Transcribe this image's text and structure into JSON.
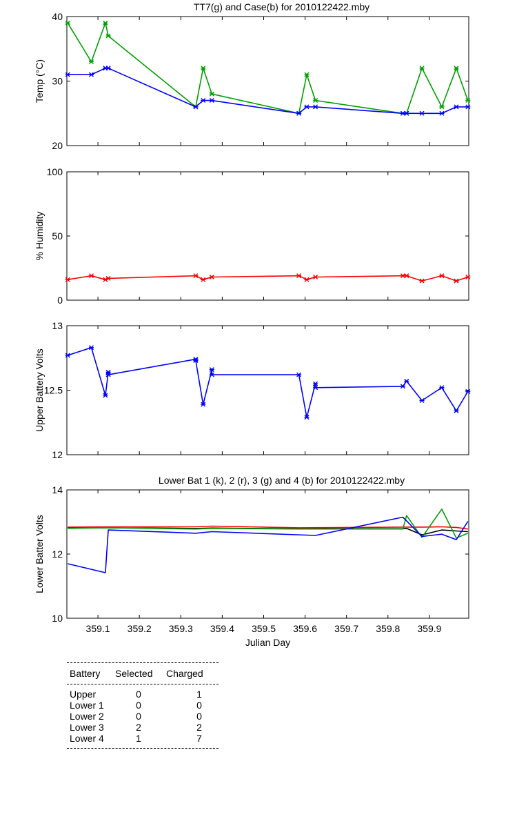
{
  "chart_data": [
    {
      "type": "line",
      "title": "TT7(g) and Case(b) for 2010122422.mby",
      "xlabel": "",
      "ylabel": "Temp  (°C)",
      "xlim": [
        359.025,
        359.995
      ],
      "ylim": [
        20,
        40
      ],
      "yticks": [
        20,
        30,
        40
      ],
      "series": [
        {
          "name": "TT7",
          "color": "#00a000",
          "x": [
            359.027,
            359.084,
            359.118,
            359.125,
            359.336,
            359.354,
            359.375,
            359.585,
            359.604,
            359.625,
            359.836,
            359.845,
            359.882,
            359.93,
            359.965,
            359.993
          ],
          "y": [
            39,
            33,
            39,
            37,
            26,
            32,
            28,
            25,
            31,
            27,
            25,
            25,
            32,
            26,
            32,
            27
          ]
        },
        {
          "name": "Case",
          "color": "#0000ff",
          "x": [
            359.027,
            359.084,
            359.118,
            359.125,
            359.336,
            359.354,
            359.375,
            359.585,
            359.604,
            359.625,
            359.836,
            359.845,
            359.882,
            359.93,
            359.965,
            359.993
          ],
          "y": [
            31,
            31,
            32,
            32,
            26,
            27,
            27,
            25,
            26,
            26,
            25,
            25,
            25,
            25,
            26,
            26
          ]
        }
      ]
    },
    {
      "type": "line",
      "title": "",
      "xlabel": "",
      "ylabel": "% Humidity",
      "xlim": [
        359.025,
        359.995
      ],
      "ylim": [
        0,
        100
      ],
      "yticks": [
        0,
        50,
        100
      ],
      "series": [
        {
          "name": "Humidity",
          "color": "#ff0000",
          "x": [
            359.027,
            359.084,
            359.118,
            359.125,
            359.336,
            359.354,
            359.375,
            359.585,
            359.604,
            359.625,
            359.836,
            359.845,
            359.882,
            359.93,
            359.965,
            359.993
          ],
          "y": [
            16,
            19,
            16,
            17,
            19,
            16,
            18,
            19,
            16,
            18,
            19,
            19,
            15,
            19,
            15,
            18
          ]
        }
      ]
    },
    {
      "type": "line",
      "title": "",
      "xlabel": "",
      "ylabel": "Upper Battery Volts",
      "xlim": [
        359.025,
        359.995
      ],
      "ylim": [
        12,
        13
      ],
      "yticks": [
        12,
        12.5,
        13
      ],
      "ytick_labels": [
        "12",
        "12.5",
        "13"
      ],
      "series": [
        {
          "name": "Upper",
          "color": "#0000ff",
          "x": [
            359.027,
            359.084,
            359.118,
            359.125,
            359.125,
            359.336,
            359.336,
            359.354,
            359.375,
            359.375,
            359.585,
            359.604,
            359.625,
            359.625,
            359.836,
            359.845,
            359.882,
            359.93,
            359.965,
            359.993
          ],
          "y": [
            12.77,
            12.83,
            12.46,
            12.64,
            12.62,
            12.74,
            12.73,
            12.39,
            12.66,
            12.62,
            12.62,
            12.29,
            12.55,
            12.52,
            12.53,
            12.57,
            12.42,
            12.52,
            12.34,
            12.49
          ]
        }
      ]
    },
    {
      "type": "line",
      "title": "Lower Bat 1 (k), 2 (r), 3 (g) and 4 (b) for 2010122422.mby",
      "xlabel": "Julian Day",
      "ylabel": "Lower Batter Volts",
      "xlim": [
        359.025,
        359.995
      ],
      "ylim": [
        10,
        14
      ],
      "yticks": [
        10,
        12,
        14
      ],
      "xticks": [
        359.1,
        359.2,
        359.3,
        359.4,
        359.5,
        359.6,
        359.7,
        359.8,
        359.9
      ],
      "xtick_labels": [
        "359.1",
        "359.2",
        "359.3",
        "359.4",
        "359.5",
        "359.6",
        "359.7",
        "359.8",
        "359.9"
      ],
      "series": [
        {
          "name": "Lower 1",
          "color": "#000000",
          "x": [
            359.027,
            359.125,
            359.336,
            359.375,
            359.585,
            359.836,
            359.845,
            359.882,
            359.93,
            359.965,
            359.993
          ],
          "y": [
            12.82,
            12.82,
            12.8,
            12.81,
            12.79,
            12.79,
            12.8,
            12.6,
            12.75,
            12.72,
            12.7
          ]
        },
        {
          "name": "Lower 2",
          "color": "#ff0000",
          "x": [
            359.027,
            359.125,
            359.336,
            359.375,
            359.585,
            359.836,
            359.882,
            359.93,
            359.965,
            359.993
          ],
          "y": [
            12.84,
            12.85,
            12.85,
            12.87,
            12.82,
            12.84,
            12.84,
            12.85,
            12.83,
            12.78
          ]
        },
        {
          "name": "Lower 3",
          "color": "#00a000",
          "x": [
            359.027,
            359.125,
            359.336,
            359.375,
            359.585,
            359.836,
            359.845,
            359.882,
            359.93,
            359.965,
            359.993
          ],
          "y": [
            12.8,
            12.82,
            12.78,
            12.8,
            12.78,
            12.78,
            13.2,
            12.52,
            13.4,
            12.5,
            12.65
          ]
        },
        {
          "name": "Lower 4",
          "color": "#0000ff",
          "x": [
            359.027,
            359.118,
            359.125,
            359.336,
            359.375,
            359.625,
            359.836,
            359.882,
            359.93,
            359.965,
            359.993
          ],
          "y": [
            11.7,
            11.42,
            12.75,
            12.65,
            12.7,
            12.58,
            13.15,
            12.55,
            12.62,
            12.45,
            13.02
          ]
        }
      ]
    }
  ],
  "battery_table": {
    "headers": [
      "Battery",
      "Selected",
      "Charged"
    ],
    "rows": [
      {
        "battery": "Upper",
        "selected": "0",
        "charged": "1"
      },
      {
        "battery": "Lower 1",
        "selected": "0",
        "charged": "0"
      },
      {
        "battery": "Lower 2",
        "selected": "0",
        "charged": "0"
      },
      {
        "battery": "Lower 3",
        "selected": "2",
        "charged": "2"
      },
      {
        "battery": "Lower 4",
        "selected": "1",
        "charged": "7"
      }
    ]
  }
}
